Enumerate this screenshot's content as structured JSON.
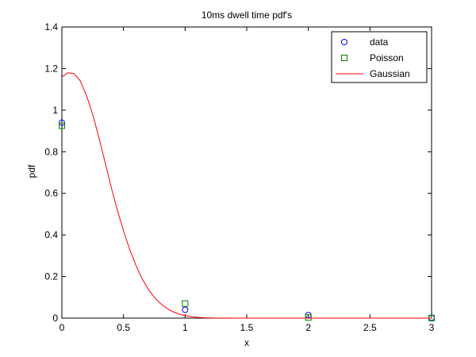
{
  "chart_data": {
    "type": "line",
    "title": "10ms dwell time pdf's",
    "xlabel": "x",
    "ylabel": "pdf",
    "xlim": [
      0,
      3
    ],
    "ylim": [
      0,
      1.4
    ],
    "xticks": [
      0,
      0.5,
      1,
      1.5,
      2,
      2.5,
      3
    ],
    "yticks": [
      0,
      0.2,
      0.4,
      0.6,
      0.8,
      1,
      1.2,
      1.4
    ],
    "xtick_labels": [
      "0",
      "0.5",
      "1",
      "1.5",
      "2",
      "2.5",
      "3"
    ],
    "ytick_labels": [
      "0",
      "0.2",
      "0.4",
      "0.6",
      "0.8",
      "1",
      "1.2",
      "1.4"
    ],
    "grid": false,
    "legend_position": "top-right",
    "series": [
      {
        "name": "data",
        "marker": "circle",
        "color": "#0000ff",
        "x": [
          0,
          1,
          2,
          3
        ],
        "y": [
          0.94,
          0.04,
          0.015,
          0.002
        ]
      },
      {
        "name": "Poisson",
        "marker": "square",
        "color": "#008000",
        "x": [
          0,
          1,
          2,
          3
        ],
        "y": [
          0.925,
          0.07,
          0.003,
          0.0001
        ]
      },
      {
        "name": "Gaussian",
        "marker": "line",
        "color": "#ff0000",
        "x": [
          0,
          0.05,
          0.1,
          0.15,
          0.2,
          0.25,
          0.3,
          0.35,
          0.4,
          0.45,
          0.5,
          0.55,
          0.6,
          0.65,
          0.7,
          0.75,
          0.8,
          0.85,
          0.9,
          0.95,
          1.0,
          1.05,
          1.1,
          1.15,
          1.2,
          1.25,
          1.3,
          1.4,
          1.5,
          1.75,
          2,
          2.5,
          3
        ],
        "y": [
          1.16,
          1.18,
          1.175,
          1.14,
          1.07,
          0.98,
          0.87,
          0.75,
          0.63,
          0.52,
          0.42,
          0.33,
          0.255,
          0.19,
          0.14,
          0.1,
          0.07,
          0.048,
          0.031,
          0.02,
          0.012,
          0.007,
          0.004,
          0.002,
          0.001,
          0.0006,
          0.0003,
          0.0001,
          3e-05,
          0,
          0,
          0,
          0
        ]
      }
    ]
  }
}
